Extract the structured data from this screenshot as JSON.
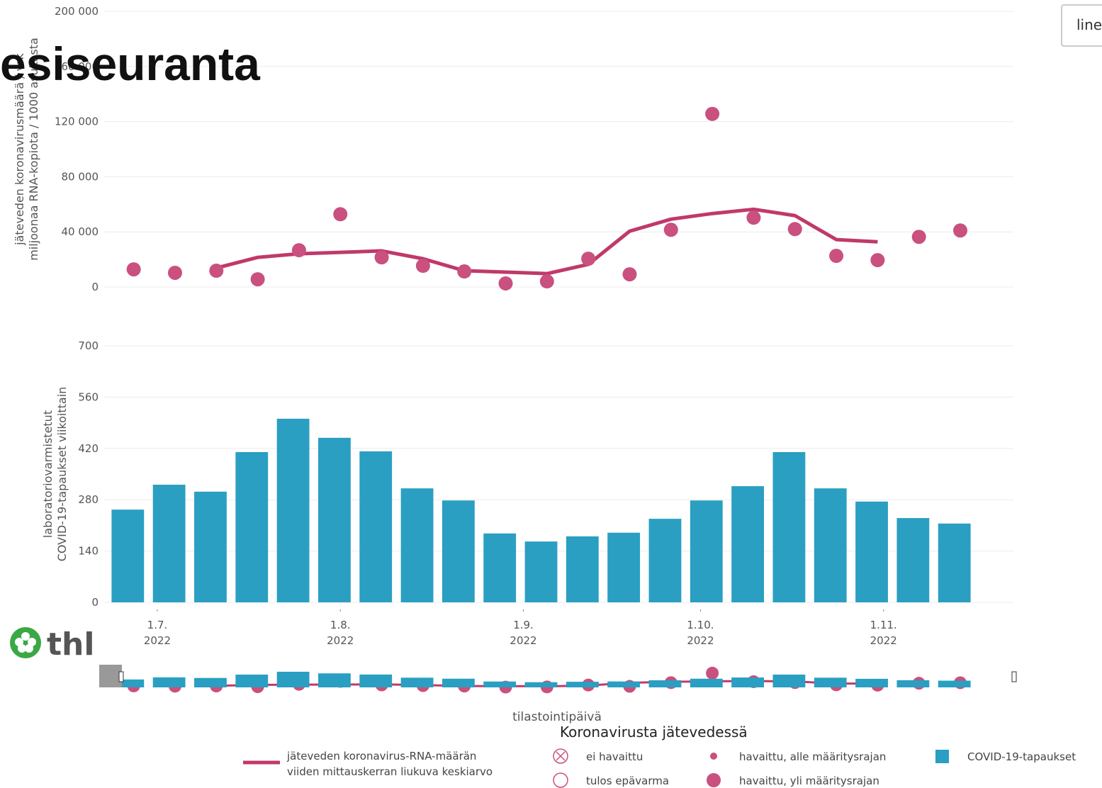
{
  "page_title": "esiseuranta",
  "button": "line",
  "logo": "thl",
  "chart_data": [
    {
      "type": "line",
      "ylabel": [
        "jäteveden koronavirusmäärä / vrk",
        "miljoonaa RNA-kopiota / 1000 asukasta"
      ],
      "xlim": [
        "2022-06-22",
        "2022-11-23"
      ],
      "ylim": [
        0,
        200000
      ],
      "yticks": [
        {
          "value": 0,
          "label": "0"
        },
        {
          "value": 40000,
          "label": "40 000"
        },
        {
          "value": 80000,
          "label": "80 000"
        },
        {
          "value": 120000,
          "label": "120 000"
        },
        {
          "value": 160000,
          "label": "160 000"
        },
        {
          "value": 200000,
          "label": "200 000"
        }
      ],
      "grid": true,
      "x": [
        "2022-06-27",
        "2022-07-04",
        "2022-07-11",
        "2022-07-18",
        "2022-07-25",
        "2022-08-01",
        "2022-08-08",
        "2022-08-15",
        "2022-08-22",
        "2022-08-29",
        "2022-09-05",
        "2022-09-12",
        "2022-09-19",
        "2022-09-26",
        "2022-10-03",
        "2022-10-10",
        "2022-10-17",
        "2022-10-24",
        "2022-10-31",
        "2022-11-07",
        "2022-11-14"
      ],
      "series": [
        {
          "name": "jäteveden koronavirus-RNA-määrän viiden mittauskerran liukuva keskiarvo",
          "type": "line",
          "color": "#c0396b",
          "values": [
            null,
            null,
            13800,
            21500,
            24100,
            25100,
            26200,
            20500,
            11800,
            10800,
            9700,
            16400,
            40500,
            49200,
            53300,
            56400,
            51800,
            34400,
            32800,
            null,
            null
          ]
        },
        {
          "name": "havaittu, yli määritysrajan",
          "type": "scatter",
          "color": "#c9507f",
          "values": [
            12800,
            10300,
            11800,
            5600,
            26700,
            52800,
            21500,
            15400,
            11300,
            2600,
            4100,
            20500,
            9200,
            41500,
            125600,
            50300,
            42000,
            22600,
            19500,
            36400,
            41000
          ]
        }
      ]
    },
    {
      "type": "bar",
      "ylabel": [
        "laboratoriovarmistetut",
        "COVID-19-tapaukset viikoittain"
      ],
      "xlabel": "tilastointipäivä",
      "xlim": [
        "2022-06-22",
        "2022-11-23"
      ],
      "xticks": [
        {
          "value": "2022-07-01",
          "label": "1.7. 2022"
        },
        {
          "value": "2022-08-01",
          "label": "1.8. 2022"
        },
        {
          "value": "2022-09-01",
          "label": "1.9. 2022"
        },
        {
          "value": "2022-10-01",
          "label": "1.10. 2022"
        },
        {
          "value": "2022-11-01",
          "label": "1.11. 2022"
        }
      ],
      "ylim": [
        0,
        700
      ],
      "yticks": [
        0,
        140,
        280,
        420,
        560,
        700
      ],
      "grid": true,
      "x": [
        "2022-06-26",
        "2022-07-03",
        "2022-07-10",
        "2022-07-17",
        "2022-07-24",
        "2022-07-31",
        "2022-08-07",
        "2022-08-14",
        "2022-08-21",
        "2022-08-28",
        "2022-09-04",
        "2022-09-11",
        "2022-09-18",
        "2022-09-25",
        "2022-10-02",
        "2022-10-09",
        "2022-10-16",
        "2022-10-23",
        "2022-10-30",
        "2022-11-06",
        "2022-11-13"
      ],
      "series": [
        {
          "name": "COVID-19-tapaukset",
          "type": "bar",
          "color": "#2a9fc2",
          "values": [
            253,
            321,
            302,
            410,
            501,
            449,
            412,
            311,
            278,
            188,
            166,
            180,
            190,
            228,
            278,
            317,
            410,
            311,
            275,
            230,
            215
          ]
        }
      ]
    }
  ],
  "legend": {
    "title": "Koronavirusta jätevedessä",
    "extra": [
      "ei havaittu",
      "tulos epävarma",
      "havaittu, alle määritysrajan"
    ]
  }
}
